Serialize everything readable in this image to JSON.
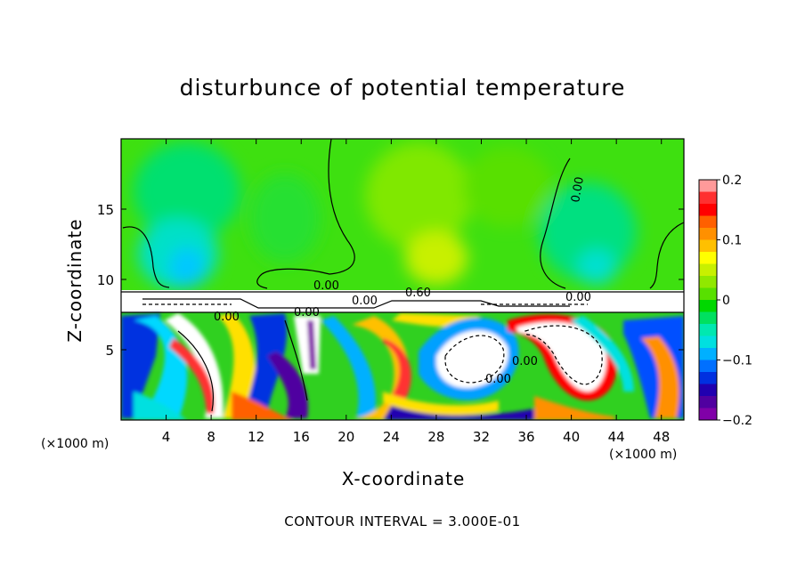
{
  "chart_data": {
    "type": "heatmap",
    "title": "disturbunce of potential temperature",
    "xlabel": "X-coordinate",
    "ylabel": "Z-coordinate",
    "x_unit": "(×1000 m)",
    "xlim": [
      0,
      50
    ],
    "ylim": [
      0,
      20
    ],
    "x_ticks": [
      4,
      8,
      12,
      16,
      20,
      24,
      28,
      32,
      36,
      40,
      44,
      48
    ],
    "y_ticks": [
      5,
      10,
      15
    ],
    "colorbar": {
      "min": -0.2,
      "max": 0.2,
      "ticks": [
        "0.2",
        "0.1",
        "0",
        "−0.1",
        "−0.2"
      ],
      "colors": [
        "#ff9a9a",
        "#ff3030",
        "#ff0000",
        "#ff6000",
        "#ff9000",
        "#ffc000",
        "#ffff00",
        "#c8f000",
        "#90e800",
        "#58e000",
        "#00d800",
        "#00e060",
        "#00e8b0",
        "#00e0e0",
        "#00b0ff",
        "#0070ff",
        "#0030e0",
        "#2000b0",
        "#5000a0",
        "#8000a8"
      ]
    },
    "contour_labels": [
      "0.00",
      "0.00",
      "0.60",
      "0.00",
      "0.00",
      "0.00",
      "0.00",
      "0.00",
      "0.00"
    ],
    "contour_interval": "CONTOUR INTERVAL = 3.000E-01"
  }
}
